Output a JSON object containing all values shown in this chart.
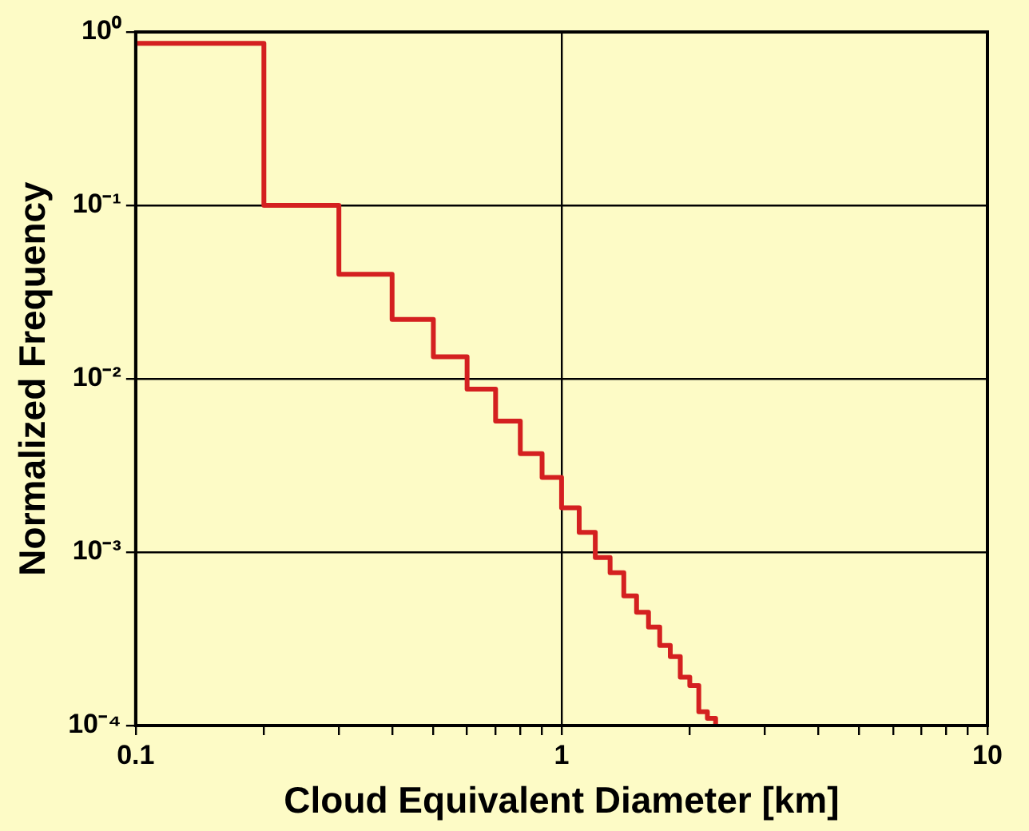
{
  "chart_data": {
    "type": "histogram",
    "xlabel": "Cloud Equivalent Diameter [km]",
    "ylabel": "Normalized Frequency",
    "bins": [
      0.1,
      0.2,
      0.3,
      0.4,
      0.5,
      0.6,
      0.7,
      0.8,
      0.9,
      1.0,
      1.1,
      1.2,
      1.3,
      1.4,
      1.5,
      1.6,
      1.7,
      1.8,
      1.9,
      2.0,
      2.1,
      2.2,
      2.3
    ],
    "values": [
      0.86,
      0.1,
      0.04,
      0.022,
      0.0134,
      0.0087,
      0.0057,
      0.0037,
      0.0027,
      0.0018,
      0.0013,
      0.00093,
      0.00076,
      0.00056,
      0.00045,
      0.00037,
      0.00029,
      0.00025,
      0.00019,
      0.00017,
      0.00012,
      0.00011
    ],
    "color": "#d42020",
    "log": "xy",
    "grid": true,
    "xlim": [
      0.1,
      10
    ],
    "xticks": [
      0.1,
      {
        "value": 0.2,
        "label": null
      },
      {
        "value": 0.3,
        "label": null
      },
      {
        "value": 0.4,
        "label": null
      },
      {
        "value": 0.5,
        "label": null
      },
      {
        "value": 0.6,
        "label": null
      },
      {
        "value": 0.7,
        "label": null
      },
      {
        "value": 0.8,
        "label": null
      },
      {
        "value": 0.9,
        "label": null
      },
      1,
      {
        "value": 2,
        "label": null
      },
      {
        "value": 3,
        "label": null
      },
      {
        "value": 4,
        "label": null
      },
      {
        "value": 5,
        "label": null
      },
      {
        "value": 6,
        "label": null
      },
      {
        "value": 7,
        "label": null
      },
      {
        "value": 8,
        "label": null
      },
      {
        "value": 9,
        "label": null
      },
      10
    ],
    "ylim": [
      0.0001,
      1
    ],
    "yticks": [
      {
        "value": 0.0001,
        "label": "10⁻⁴"
      },
      {
        "value": 0.001,
        "label": "10⁻³"
      },
      {
        "value": 0.01,
        "label": "10⁻²"
      },
      {
        "value": 0.1,
        "label": "10⁻¹"
      },
      {
        "value": 1,
        "label": "10⁰"
      }
    ]
  }
}
